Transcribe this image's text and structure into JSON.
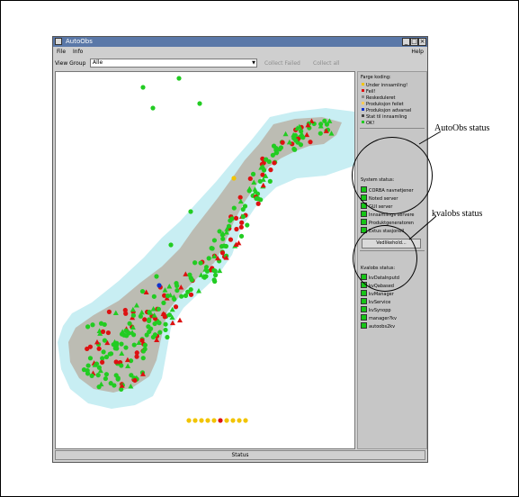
{
  "window": {
    "title": "AutoObs",
    "menu": {
      "file": "File",
      "info": "Info",
      "help": "Help"
    },
    "buttons": {
      "minimize": "_",
      "maximize": "□",
      "close": "×"
    }
  },
  "toolbar": {
    "view_group_label": "View Group",
    "view_group_value": "Alle",
    "collect_failed": "Collect Failed",
    "collect_all": "Collect all"
  },
  "legend": {
    "title": "Farge koding:",
    "items": [
      {
        "label": "Under innsamling!",
        "color": "#f2c400"
      },
      {
        "label": "Feil!",
        "color": "#dd1111"
      },
      {
        "label": "Reskeduleret",
        "color": "#8a8a8a"
      },
      {
        "label": "Produksjon feilet",
        "color": "#ffcc55"
      },
      {
        "label": "Produksjon advarsel",
        "color": "#1133cc"
      },
      {
        "label": "Stat til innsamling",
        "color": "#444444"
      },
      {
        "label": "OK!",
        "color": "#22cc22"
      }
    ]
  },
  "system_status": {
    "title": "System status:",
    "items": [
      "CORBA navnetjener",
      "Noted server",
      "GUI server",
      "Innsamlings servere",
      "Produktgeneratoren",
      "Extus stasjonell"
    ]
  },
  "vedlikehold_button": "Vedlikehold...",
  "kvalobs_status": {
    "title": "Kvalobs status:",
    "items": [
      "kvDataInputd",
      "kvQabased",
      "kvManager",
      "kvService",
      "kvSynopp",
      "manager?kv",
      "autoobs2kv"
    ]
  },
  "statusbar_text": "Status",
  "annotations": {
    "autoobs_status": "AutoObs status",
    "kvalobs_status": "kvalobs status"
  },
  "map": {
    "colors": {
      "sea": "#c8eef3",
      "land": "#bcbcb3",
      "ok": "#22cc22",
      "error": "#dd1111",
      "collecting": "#f2c400",
      "warning": "#1133cc"
    }
  }
}
